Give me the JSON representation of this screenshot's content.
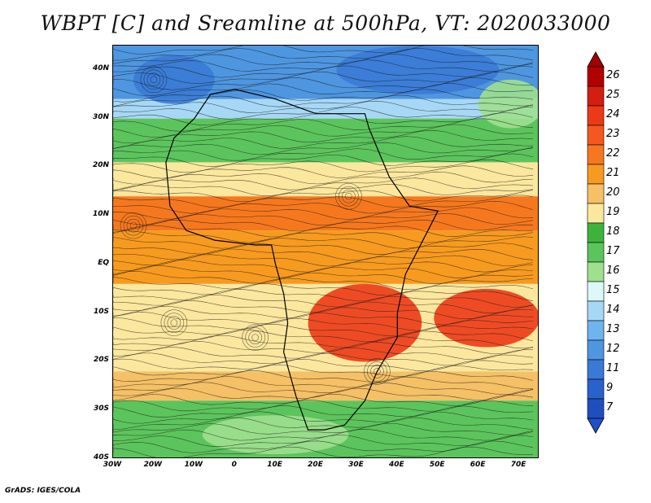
{
  "title": "WBPT [C] and Sreamline at 500hPa, VT: 2020033000",
  "credit": "GrADS: IGES/COLA",
  "axes": {
    "lat_labels": [
      "40N",
      "30N",
      "20N",
      "10N",
      "EQ",
      "10S",
      "20S",
      "30S",
      "40S"
    ],
    "lat_values": [
      40,
      30,
      20,
      10,
      0,
      -10,
      -20,
      -30,
      -40
    ],
    "lon_labels": [
      "30W",
      "20W",
      "10W",
      "0",
      "10E",
      "20E",
      "30E",
      "40E",
      "50E",
      "60E",
      "70E"
    ],
    "lon_values": [
      -30,
      -20,
      -10,
      0,
      10,
      20,
      30,
      40,
      50,
      60,
      70
    ],
    "lat_range": [
      -40,
      45
    ],
    "lon_range": [
      -30,
      75
    ]
  },
  "colorbar": {
    "labels": [
      "26",
      "25",
      "24",
      "23",
      "22",
      "21",
      "20",
      "19",
      "18",
      "17",
      "16",
      "15",
      "14",
      "13",
      "12",
      "11",
      "9",
      "7"
    ],
    "colors": [
      "#b30000",
      "#d41e10",
      "#ec3a16",
      "#f4581e",
      "#f6781e",
      "#f79a20",
      "#f5c066",
      "#fbe79e",
      "#3cb43c",
      "#5cc45c",
      "#9fe08f",
      "#dcf8f8",
      "#a6d8f6",
      "#6eb4ee",
      "#4e96e0",
      "#3a7ad6",
      "#2a62cc",
      "#1f4fbf"
    ],
    "top_arrow_color": "#a30000",
    "bottom_arrow_color": "#1e50c8"
  },
  "field": {
    "bands": [
      {
        "lat_top": 45,
        "lat_bot": 34,
        "color": "#4e96e0"
      },
      {
        "lat_top": 34,
        "lat_bot": 30,
        "color": "#a6d8f6"
      },
      {
        "lat_top": 30,
        "lat_bot": 21,
        "color": "#5cc45c"
      },
      {
        "lat_top": 21,
        "lat_bot": 14,
        "color": "#fbe79e"
      },
      {
        "lat_top": 14,
        "lat_bot": 7,
        "color": "#f6781e"
      },
      {
        "lat_top": 7,
        "lat_bot": -4,
        "color": "#f79a20"
      },
      {
        "lat_top": -4,
        "lat_bot": -22,
        "color": "#fbe79e"
      },
      {
        "lat_top": -22,
        "lat_bot": -28,
        "color": "#f5c066"
      },
      {
        "lat_top": -28,
        "lat_bot": -40,
        "color": "#5cc45c"
      }
    ],
    "patches": [
      {
        "lon": 32,
        "lat": -12,
        "rx": 14,
        "ry": 8,
        "color": "#ec3a16"
      },
      {
        "lon": 62,
        "lat": -11,
        "rx": 13,
        "ry": 6,
        "color": "#ec3a16"
      },
      {
        "lon": -15,
        "lat": 38,
        "rx": 10,
        "ry": 5,
        "color": "#3a7ad6"
      },
      {
        "lon": 45,
        "lat": 40,
        "rx": 20,
        "ry": 5,
        "color": "#3a7ad6"
      },
      {
        "lon": 10,
        "lat": -35,
        "rx": 18,
        "ry": 4,
        "color": "#9fe08f"
      },
      {
        "lon": 68,
        "lat": 33,
        "rx": 8,
        "ry": 5,
        "color": "#9fe08f"
      }
    ]
  }
}
